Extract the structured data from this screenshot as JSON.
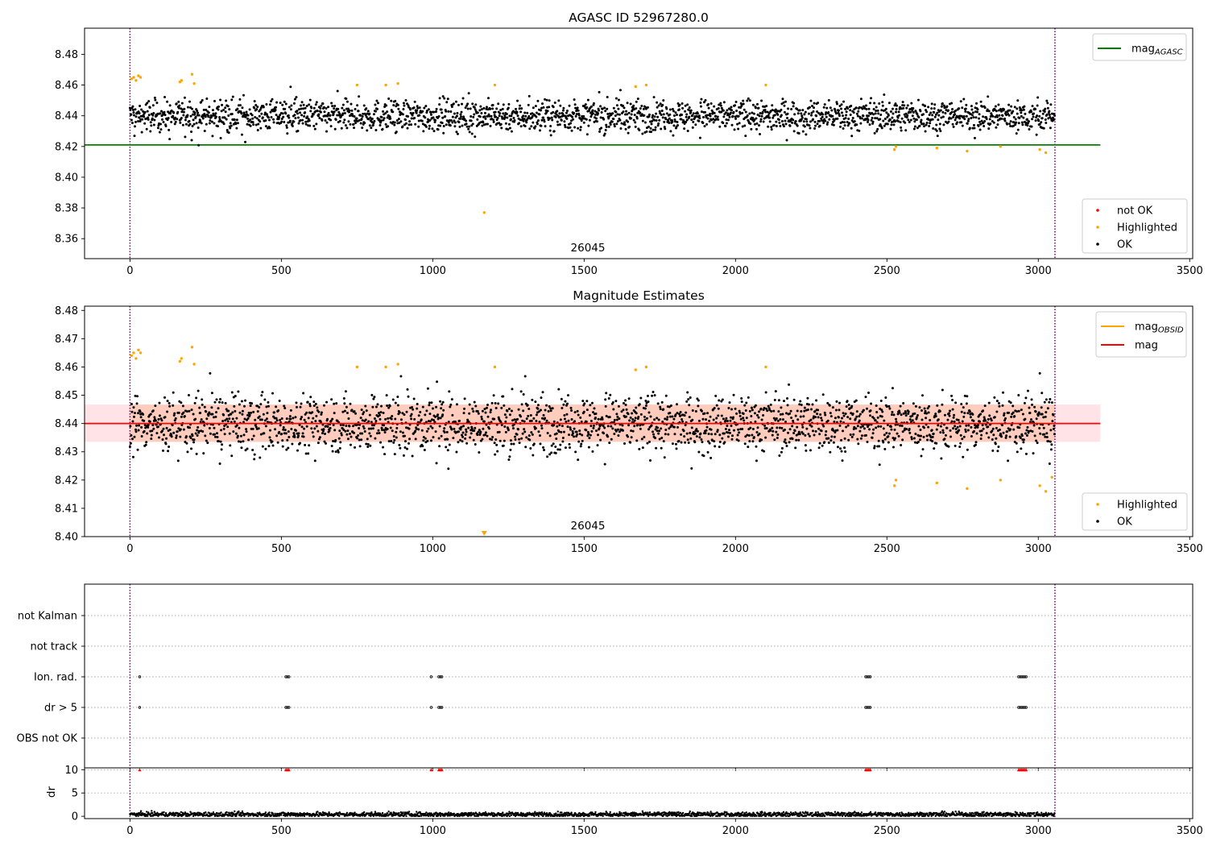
{
  "chart_data": [
    {
      "type": "scatter",
      "title": "AGASC ID 52967280.0",
      "annotation": "26045",
      "xlim": [
        -150,
        3510
      ],
      "ylim": [
        8.347,
        8.497
      ],
      "xticks": [
        0,
        500,
        1000,
        1500,
        2000,
        2500,
        3000,
        3500
      ],
      "yticks": [
        8.36,
        8.38,
        8.4,
        8.42,
        8.44,
        8.46,
        8.48
      ],
      "ytick_format": "2",
      "vlines": [
        0,
        3055
      ],
      "hlines": [
        {
          "name": "mag_AGASC",
          "y": 8.421,
          "x_range": [
            -150,
            3205
          ],
          "color": "#008000"
        }
      ],
      "ok_band": {
        "center": 8.44,
        "spread": 0.005,
        "outlier_spread": 0.008
      },
      "highlighted_points": [
        [
          5,
          8.464
        ],
        [
          12,
          8.465
        ],
        [
          20,
          8.463
        ],
        [
          28,
          8.466
        ],
        [
          35,
          8.465
        ],
        [
          165,
          8.462
        ],
        [
          170,
          8.463
        ],
        [
          205,
          8.467
        ],
        [
          212,
          8.461
        ],
        [
          750,
          8.46
        ],
        [
          845,
          8.46
        ],
        [
          885,
          8.461
        ],
        [
          1170,
          8.377
        ],
        [
          1205,
          8.46
        ],
        [
          1670,
          8.459
        ],
        [
          1705,
          8.46
        ],
        [
          2100,
          8.46
        ],
        [
          2525,
          8.418
        ],
        [
          2530,
          8.42
        ],
        [
          2665,
          8.419
        ],
        [
          2765,
          8.417
        ],
        [
          2875,
          8.42
        ],
        [
          3005,
          8.418
        ],
        [
          3025,
          8.416
        ]
      ],
      "legend_lines": [
        {
          "name": "mag",
          "sub": "AGASC",
          "color": "#008000"
        }
      ],
      "legend_points": [
        {
          "name": "not OK",
          "color": "#ff0000"
        },
        {
          "name": "Highlighted",
          "color": "#ffa500"
        },
        {
          "name": "OK",
          "color": "#000000"
        }
      ],
      "colors": {
        "ok": "#000000",
        "highlighted": "#ffa500",
        "not_ok": "#ff0000",
        "vline": "#800080"
      }
    },
    {
      "type": "scatter",
      "title": "Magnitude Estimates",
      "annotation": "26045",
      "xlim": [
        -150,
        3510
      ],
      "ylim": [
        8.4,
        8.4815
      ],
      "xticks": [
        0,
        500,
        1000,
        1500,
        2000,
        2500,
        3000,
        3500
      ],
      "yticks": [
        8.4,
        8.41,
        8.42,
        8.43,
        8.44,
        8.45,
        8.46,
        8.47,
        8.48
      ],
      "ytick_format": "2",
      "vlines": [
        0,
        3055
      ],
      "hlines": [
        {
          "name": "mag",
          "y": 8.44,
          "x_range": [
            -150,
            3205
          ],
          "color": "#ff0000"
        }
      ],
      "bands": [
        {
          "y": [
            8.4335,
            8.4467
          ],
          "x_range": [
            -150,
            3205
          ],
          "color": "#ffc0c8",
          "opacity": 0.45
        },
        {
          "y": [
            8.4335,
            8.4467
          ],
          "x_range": [
            0,
            3055
          ],
          "color": "#ffa070",
          "opacity": 0.35
        }
      ],
      "ok_band": {
        "center": 8.44,
        "spread": 0.005,
        "outlier_spread": 0.008
      },
      "highlighted_points": [
        [
          5,
          8.464
        ],
        [
          12,
          8.465
        ],
        [
          20,
          8.463
        ],
        [
          28,
          8.466
        ],
        [
          35,
          8.465
        ],
        [
          165,
          8.462
        ],
        [
          170,
          8.463
        ],
        [
          205,
          8.467
        ],
        [
          212,
          8.461
        ],
        [
          750,
          8.46
        ],
        [
          845,
          8.46
        ],
        [
          885,
          8.461
        ],
        [
          1205,
          8.46
        ],
        [
          1670,
          8.459
        ],
        [
          1705,
          8.46
        ],
        [
          2100,
          8.46
        ],
        [
          2525,
          8.418
        ],
        [
          2530,
          8.42
        ],
        [
          2665,
          8.419
        ],
        [
          2765,
          8.417
        ],
        [
          2875,
          8.42
        ],
        [
          3005,
          8.418
        ],
        [
          3025,
          8.416
        ],
        [
          3045,
          8.421
        ]
      ],
      "offscale_marker": {
        "x": 1170,
        "color": "#ffa500"
      },
      "legend_lines": [
        {
          "name": "mag",
          "sub": "OBSID",
          "color": "#ffa500"
        },
        {
          "name": "mag",
          "sub": "",
          "color": "#ff0000"
        }
      ],
      "legend_points": [
        {
          "name": "Highlighted",
          "color": "#ffa500"
        },
        {
          "name": "OK",
          "color": "#000000"
        }
      ],
      "colors": {
        "ok": "#000000",
        "highlighted": "#ffa500",
        "vline": "#800080"
      }
    },
    {
      "type": "scatter",
      "title": "",
      "xlim": [
        -150,
        3510
      ],
      "xticks": [
        0,
        500,
        1000,
        1500,
        2000,
        2500,
        3000,
        3500
      ],
      "vlines": [
        0,
        3055
      ],
      "categories": [
        "not Kalman",
        "not track",
        "Ion. rad.",
        "dr > 5",
        "OBS not OK"
      ],
      "flag_points": {
        "not Kalman": [],
        "not track": [],
        "Ion. rad.": [
          32,
          515,
          520,
          525,
          995,
          1020,
          1025,
          1030,
          2430,
          2435,
          2440,
          2445,
          2935,
          2940,
          2945,
          2950,
          2955,
          2960
        ],
        "dr > 5": [
          32,
          515,
          520,
          525,
          995,
          1020,
          1025,
          1030,
          2430,
          2435,
          2440,
          2445,
          2935,
          2940,
          2945,
          2950,
          2955,
          2960
        ],
        "OBS not OK": []
      },
      "colors": {
        "flag": "#000000",
        "grid": "#aaaaaa",
        "vline": "#800080"
      }
    },
    {
      "type": "scatter",
      "title": "",
      "ylabel": "dr",
      "xlim": [
        -150,
        3510
      ],
      "ylim": [
        -0.5,
        10.4
      ],
      "xticks": [
        0,
        500,
        1000,
        1500,
        2000,
        2500,
        3000,
        3500
      ],
      "yticks": [
        0,
        5,
        10
      ],
      "ytick_format": "0",
      "vlines": [
        0,
        3055
      ],
      "dr_baseline": {
        "center": 0.4,
        "spread": 0.25
      },
      "capped_points": [
        32,
        515,
        520,
        525,
        995,
        1020,
        1025,
        1030,
        2430,
        2435,
        2440,
        2445,
        2935,
        2940,
        2945,
        2950,
        2955,
        2960
      ],
      "capped_value": 10,
      "colors": {
        "dr": "#000000",
        "capped": "#ff0000",
        "vline": "#800080"
      }
    }
  ]
}
